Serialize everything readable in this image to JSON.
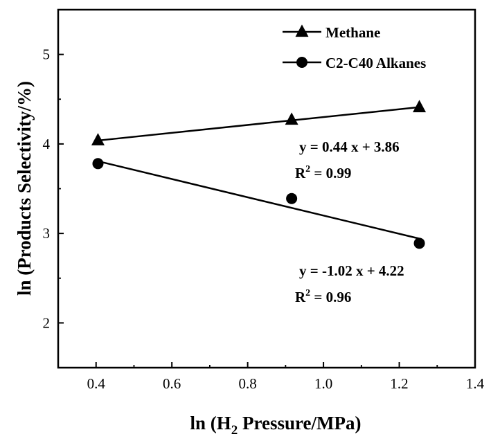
{
  "chart_data": {
    "type": "scatter",
    "xlabel": {
      "prefix": "ln (H",
      "sub": "2",
      "suffix": " Pressure/MPa)"
    },
    "ylabel": "ln (Products Selectivity/%)",
    "xlim": [
      0.3,
      1.4
    ],
    "ylim": [
      1.5,
      5.5
    ],
    "xticks": [
      0.4,
      0.6,
      0.8,
      1.0,
      1.2,
      1.4
    ],
    "xtick_labels": [
      "0.4",
      "0.6",
      "0.8",
      "1.0",
      "1.2",
      "1.4"
    ],
    "yticks": [
      2,
      3,
      4,
      5
    ],
    "ytick_labels": [
      "2",
      "3",
      "4",
      "5"
    ],
    "legend_position": "top-right",
    "grid": false,
    "series": [
      {
        "name": "Methane",
        "marker": "triangle",
        "x": [
          0.405,
          0.916,
          1.253
        ],
        "y": [
          4.04,
          4.27,
          4.41
        ],
        "fit": {
          "slope": 0.44,
          "intercept": 3.86
        },
        "annotation": {
          "equation": "y = 0.44 x + 3.86",
          "r2_prefix": "R",
          "r2_sup": "2",
          "r2_value": " = 0.99"
        }
      },
      {
        "name": "C2-C40 Alkanes",
        "marker": "circle",
        "x": [
          0.405,
          0.916,
          1.253
        ],
        "y": [
          3.78,
          3.39,
          2.89
        ],
        "fit": {
          "slope": -1.02,
          "intercept": 4.22
        },
        "annotation": {
          "equation": "y = -1.02 x + 4.22",
          "r2_prefix": "R",
          "r2_sup": "2",
          "r2_value": " = 0.96"
        }
      }
    ]
  }
}
